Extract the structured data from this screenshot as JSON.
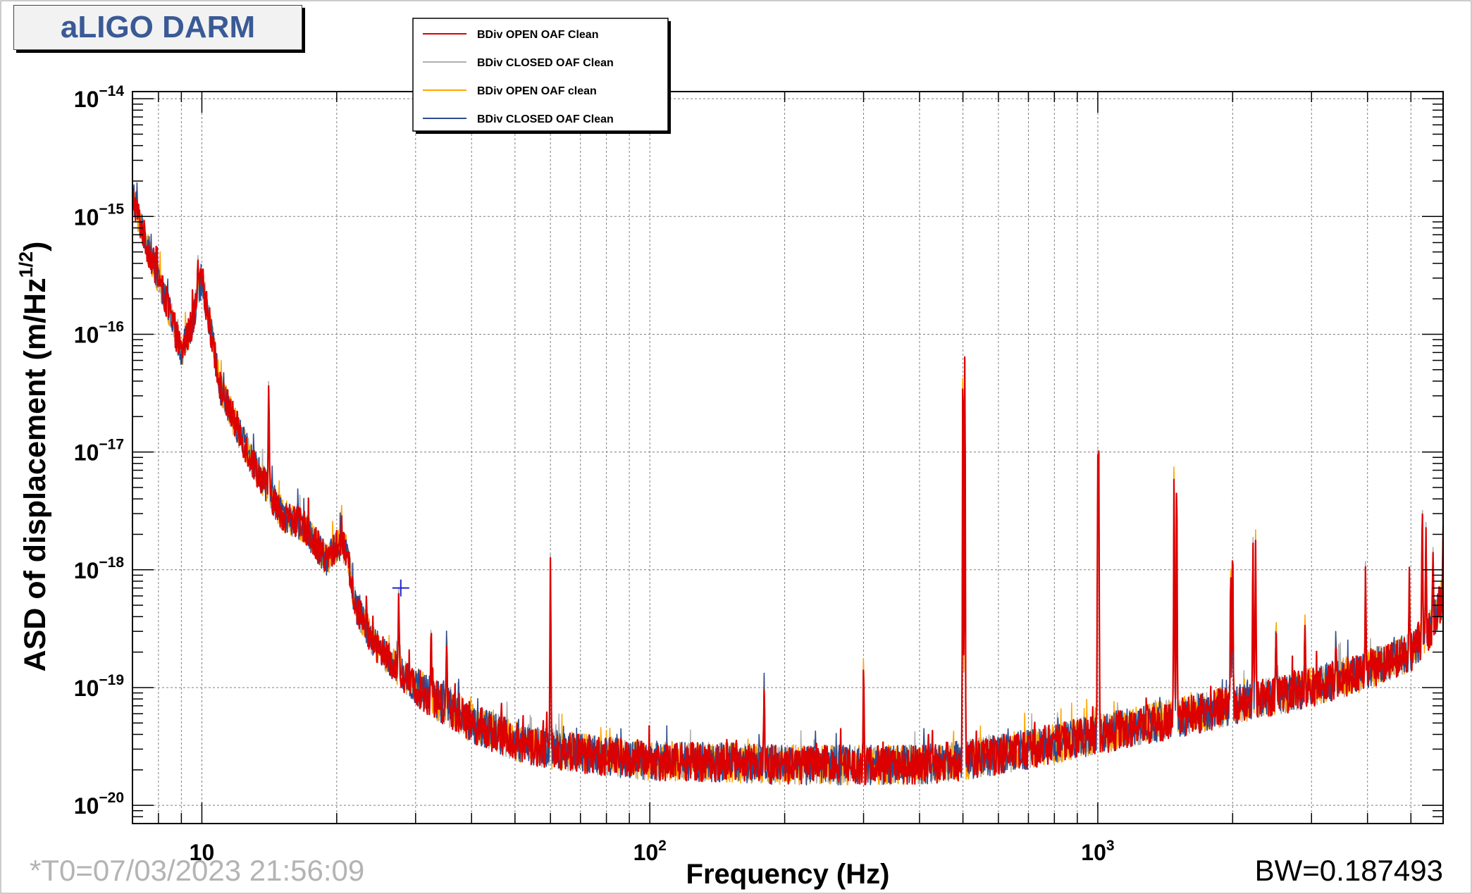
{
  "header": {
    "title": "aLIGO DARM"
  },
  "footer": {
    "t0": "*T0=07/03/2023 21:56:09",
    "bw": "BW=0.187493"
  },
  "colors": {
    "grid": "#7f7f7f",
    "axis": "#000000",
    "title_text": "#3a5a96",
    "title_bg": "#f2f2f2"
  },
  "chart_data": {
    "type": "line",
    "title": "aLIGO DARM",
    "xlabel": "Frequency (Hz)",
    "ylabel_main": "ASD of displacement (m/Hz",
    "ylabel_exp": "1/2",
    "ylabel_tail": ")",
    "xscale": "log",
    "yscale": "log",
    "xlim": [
      7,
      5900
    ],
    "ylim": [
      7e-21,
      1.15e-14
    ],
    "grid": true,
    "legend_position": "top-center",
    "x_ticks": [
      {
        "value": 10,
        "base": "10",
        "exp": ""
      },
      {
        "value": 100,
        "base": "10",
        "exp": "2"
      },
      {
        "value": 1000,
        "base": "10",
        "exp": "3"
      }
    ],
    "y_ticks": [
      {
        "value": 1e-14,
        "base": "10",
        "exp": "−14"
      },
      {
        "value": 1e-15,
        "base": "10",
        "exp": "−15"
      },
      {
        "value": 1e-16,
        "base": "10",
        "exp": "−16"
      },
      {
        "value": 1e-17,
        "base": "10",
        "exp": "−17"
      },
      {
        "value": 1e-18,
        "base": "10",
        "exp": "−18"
      },
      {
        "value": 1e-19,
        "base": "10",
        "exp": "−19"
      },
      {
        "value": 1e-20,
        "base": "10",
        "exp": "−20"
      }
    ],
    "baseline": [
      [
        7,
        1.5e-15
      ],
      [
        7.5,
        6e-16
      ],
      [
        8,
        3e-16
      ],
      [
        8.5,
        1.5e-16
      ],
      [
        9,
        7e-17
      ],
      [
        9.5,
        1.2e-16
      ],
      [
        10,
        3e-16
      ],
      [
        10.5,
        1e-16
      ],
      [
        11,
        3.5e-17
      ],
      [
        12,
        1.6e-17
      ],
      [
        13,
        8e-18
      ],
      [
        14,
        5e-18
      ],
      [
        15,
        3e-18
      ],
      [
        17,
        2.3e-18
      ],
      [
        19,
        1.2e-18
      ],
      [
        20,
        1.6e-18
      ],
      [
        21,
        1.5e-18
      ],
      [
        22,
        5e-19
      ],
      [
        24,
        2.5e-19
      ],
      [
        27,
        1.5e-19
      ],
      [
        30,
        1e-19
      ],
      [
        35,
        7e-20
      ],
      [
        40,
        5e-20
      ],
      [
        50,
        3.5e-20
      ],
      [
        60,
        3e-20
      ],
      [
        80,
        2.6e-20
      ],
      [
        100,
        2.4e-20
      ],
      [
        150,
        2.3e-20
      ],
      [
        200,
        2.2e-20
      ],
      [
        300,
        2.2e-20
      ],
      [
        400,
        2.2e-20
      ],
      [
        500,
        2.4e-20
      ],
      [
        700,
        3e-20
      ],
      [
        1000,
        4e-20
      ],
      [
        1500,
        5.5e-20
      ],
      [
        2000,
        7e-20
      ],
      [
        3000,
        1e-19
      ],
      [
        4000,
        1.4e-19
      ],
      [
        5000,
        2e-19
      ],
      [
        5500,
        3e-19
      ],
      [
        5900,
        6e-19
      ]
    ],
    "peaks": [
      {
        "x": 9.8,
        "y": 4.5e-16
      },
      {
        "x": 14.1,
        "y": 4.2e-17
      },
      {
        "x": 20.5,
        "y": 3.5e-18
      },
      {
        "x": 27.5,
        "y": 7e-19
      },
      {
        "x": 32.5,
        "y": 3.6e-19
      },
      {
        "x": 35.2,
        "y": 3.3e-19
      },
      {
        "x": 60,
        "y": 1.5e-18
      },
      {
        "x": 180,
        "y": 1.3e-19
      },
      {
        "x": 300,
        "y": 2e-19
      },
      {
        "x": 500,
        "y": 1.2e-16
      },
      {
        "x": 505,
        "y": 1e-16
      },
      {
        "x": 1000,
        "y": 1e-17
      },
      {
        "x": 1005,
        "y": 1e-17
      },
      {
        "x": 1480,
        "y": 9.5e-18
      },
      {
        "x": 1500,
        "y": 8e-18
      },
      {
        "x": 1980,
        "y": 1.3e-18
      },
      {
        "x": 2000,
        "y": 1.9e-18
      },
      {
        "x": 2220,
        "y": 2e-18
      },
      {
        "x": 2250,
        "y": 2.1e-18
      },
      {
        "x": 2500,
        "y": 4e-19
      },
      {
        "x": 2900,
        "y": 4e-19
      },
      {
        "x": 3400,
        "y": 3e-19
      },
      {
        "x": 3960,
        "y": 1.2e-18
      },
      {
        "x": 4960,
        "y": 1e-18
      },
      {
        "x": 5300,
        "y": 4e-18
      },
      {
        "x": 5400,
        "y": 2.5e-18
      },
      {
        "x": 5600,
        "y": 1.5e-18
      },
      {
        "x": 5900,
        "y": 2.6e-18
      }
    ],
    "series": [
      {
        "name": "BDiv OPEN OAF Clean",
        "color": "#dd0000"
      },
      {
        "name": "BDiv CLOSED OAF Clean",
        "color": "#b0b0b0"
      },
      {
        "name": "BDiv OPEN OAF clean",
        "color": "#ffa500"
      },
      {
        "name": "BDiv CLOSED OAF Clean",
        "color": "#2c4a8c"
      }
    ]
  }
}
